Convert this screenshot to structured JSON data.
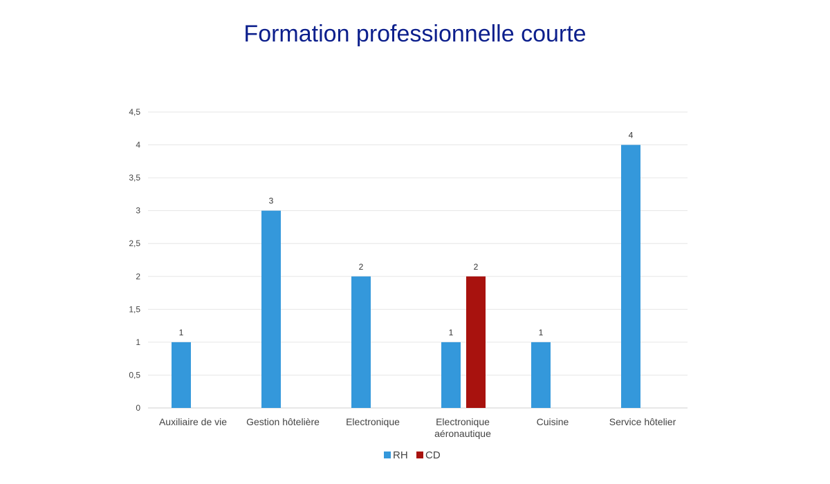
{
  "chart_data": {
    "type": "bar",
    "title": "Formation professionnelle courte",
    "categories": [
      [
        "Auxiliaire de vie"
      ],
      [
        "Gestion hôtelière"
      ],
      [
        "Electronique"
      ],
      [
        "Electronique",
        "aéronautique"
      ],
      [
        "Cuisine"
      ],
      [
        "Service hôtelier"
      ]
    ],
    "series": [
      {
        "name": "RH",
        "color": "#3498db",
        "values": [
          1,
          3,
          2,
          1,
          1,
          4
        ]
      },
      {
        "name": "CD",
        "color": "#a8120e",
        "values": [
          null,
          null,
          null,
          2,
          null,
          null
        ]
      }
    ],
    "ylim": [
      0,
      4.5
    ],
    "yticks": [
      "0",
      "0,5",
      "1",
      "1,5",
      "2",
      "2,5",
      "3",
      "3,5",
      "4",
      "4,5"
    ],
    "grid": true,
    "legend_position": "bottom-center",
    "data_labels": true
  }
}
